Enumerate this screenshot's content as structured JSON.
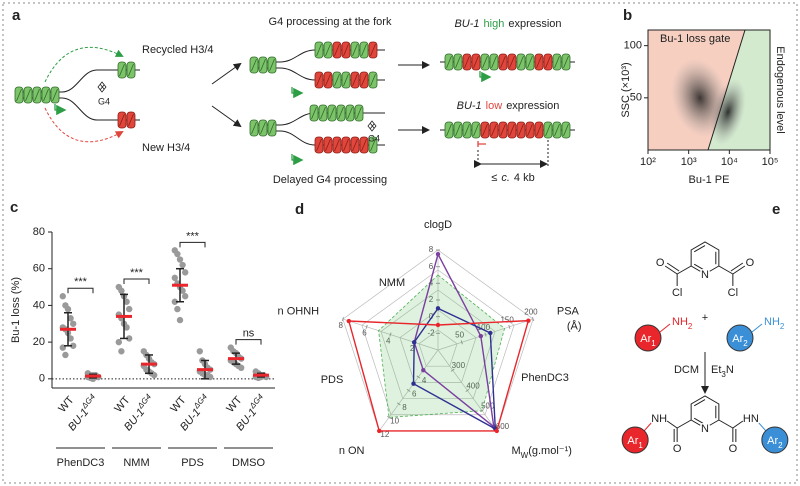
{
  "panel_a": {
    "label": "a",
    "recycled": "Recycled H3/4",
    "new": "New H3/4",
    "g4_left": "G4",
    "fork_title": "G4 processing at the fork",
    "g4_delayed": "G4",
    "delayed_title": "Delayed G4 processing",
    "high": {
      "gene": "BU-1",
      "level": "high",
      "suffix": "expression"
    },
    "low": {
      "gene": "BU-1",
      "level": "low",
      "suffix": "expression"
    },
    "distance": {
      "prefix": "≤",
      "approx": "c.",
      "length": "4 kb"
    }
  },
  "chart_data": [
    {
      "type": "density",
      "panel": "b",
      "gate_label": "Bu-1 loss gate",
      "region_label": "Endogenous level",
      "ylabel": "SSC (×10³)",
      "xlabel": "Bu-1 PE",
      "xscale": "log",
      "xlim": [
        100,
        100000
      ],
      "xticks": [
        {
          "value": 100,
          "label": "10²"
        },
        {
          "value": 1000,
          "label": "10³"
        },
        {
          "value": 10000,
          "label": "10⁴"
        },
        {
          "value": 100000,
          "label": "10⁵"
        }
      ],
      "ylim": [
        0,
        115
      ],
      "yticks": [
        50,
        100
      ],
      "gate_color": "#f6cfc1",
      "region_color": "#d3eacf",
      "gate_text_color": "#e0463c",
      "region_text_color": "#2e9e46"
    },
    {
      "type": "dot",
      "panel": "c",
      "ylabel": "Bu-1 loss (%)",
      "ylim": [
        -5,
        80
      ],
      "yticks": [
        0,
        20,
        40,
        60,
        80
      ],
      "reference_line": 0,
      "point_color": "#9a9a9a",
      "mean_color": "#e8262b",
      "groups": [
        {
          "label": "WT",
          "points": [
            45,
            40,
            38,
            33,
            30,
            28,
            27,
            25,
            22,
            18,
            17,
            13
          ],
          "mean": 27,
          "sd": 9
        },
        {
          "label": "BU-1",
          "superscript": "ΔG4",
          "points": [
            3,
            2,
            2,
            1,
            1,
            1,
            0.5,
            0,
            2,
            1
          ],
          "mean": 1.5,
          "sd": 1
        },
        {
          "label": "WT",
          "points": [
            50,
            48,
            45,
            42,
            38,
            35,
            33,
            30,
            28,
            22,
            20,
            15
          ],
          "mean": 34,
          "sd": 12
        },
        {
          "label": "BU-1",
          "superscript": "ΔG4",
          "points": [
            15,
            13,
            11,
            9,
            8,
            7,
            5,
            4,
            3,
            2
          ],
          "mean": 8,
          "sd": 5
        },
        {
          "label": "WT",
          "points": [
            70,
            68,
            65,
            62,
            58,
            55,
            52,
            50,
            48,
            45,
            42,
            38,
            32
          ],
          "mean": 51,
          "sd": 9
        },
        {
          "label": "BU-1",
          "superscript": "ΔG4",
          "points": [
            15,
            10,
            8,
            6,
            5,
            4,
            3,
            2,
            2,
            1
          ],
          "mean": 5,
          "sd": 5
        },
        {
          "label": "WT",
          "points": [
            17,
            15,
            14,
            12,
            11,
            10,
            9,
            8,
            7,
            6
          ],
          "mean": 11,
          "sd": 3
        },
        {
          "label": "BU-1",
          "superscript": "ΔG4",
          "points": [
            4,
            3,
            2,
            2,
            1,
            1,
            0.5,
            1
          ],
          "mean": 2,
          "sd": 1
        }
      ],
      "treatments": [
        {
          "name": "PhenDC3",
          "significance": "***"
        },
        {
          "name": "NMM",
          "significance": "***"
        },
        {
          "name": "PDS",
          "significance": "***"
        },
        {
          "name": "DMSO",
          "significance": "ns"
        }
      ]
    },
    {
      "type": "radar",
      "panel": "d",
      "axes": [
        {
          "label": "clogD",
          "range": [
            -4,
            8
          ],
          "ticks": [
            -2,
            0,
            2,
            4,
            6,
            8
          ]
        },
        {
          "label": "PSA",
          "unit": "(Å)",
          "range": [
            0,
            200
          ],
          "ticks": [
            50,
            100,
            150,
            200
          ]
        },
        {
          "label": "M",
          "label_sub": "W",
          "label_after": "(g.mol⁻¹)",
          "range": [
            200,
            600
          ],
          "ticks": [
            300,
            400,
            500,
            600
          ]
        },
        {
          "label": "n ON",
          "range": [
            0,
            12
          ],
          "ticks": [
            4,
            6,
            8,
            10,
            12
          ]
        },
        {
          "label": "n OHNH",
          "range": [
            0,
            8
          ],
          "ticks": [
            2,
            4,
            6,
            8
          ]
        }
      ],
      "series": [
        {
          "color": "#4caf50",
          "fill": true,
          "values": [
            5,
            140,
            500,
            10,
            5
          ]
        },
        {
          "name": "NMM",
          "color": "#7b3fa0",
          "values": [
            7.5,
            90,
            580,
            3,
            2
          ]
        },
        {
          "name": "PhenDC3",
          "color": "#2e3192",
          "values": [
            1,
            110,
            590,
            5,
            2
          ]
        },
        {
          "name": "PDS",
          "color": "#e8262b",
          "values": [
            -1,
            190,
            600,
            12,
            7.5
          ]
        }
      ]
    }
  ],
  "panel_e": {
    "label": "e",
    "plus": "+",
    "reactant": {
      "n": "N",
      "o_left": "O",
      "o_right": "O",
      "cl_left": "Cl",
      "cl_right": "Cl"
    },
    "amine_1": {
      "ar": "Ar",
      "ar_sub": "1",
      "nh": "NH",
      "nh_sub": "2"
    },
    "amine_2": {
      "ar": "Ar",
      "ar_sub": "2",
      "nh": "NH",
      "nh_sub": "2"
    },
    "solvent": "DCM",
    "base": {
      "text": "Et",
      "sub": "3",
      "after": "N"
    },
    "product": {
      "n": "N",
      "o_left": "O",
      "o_right": "O",
      "nh_left": "NH",
      "nh_right": "HN",
      "ar_left": {
        "ar": "Ar",
        "sub": "1"
      },
      "ar_right": {
        "ar": "Ar",
        "sub": "2"
      }
    }
  }
}
